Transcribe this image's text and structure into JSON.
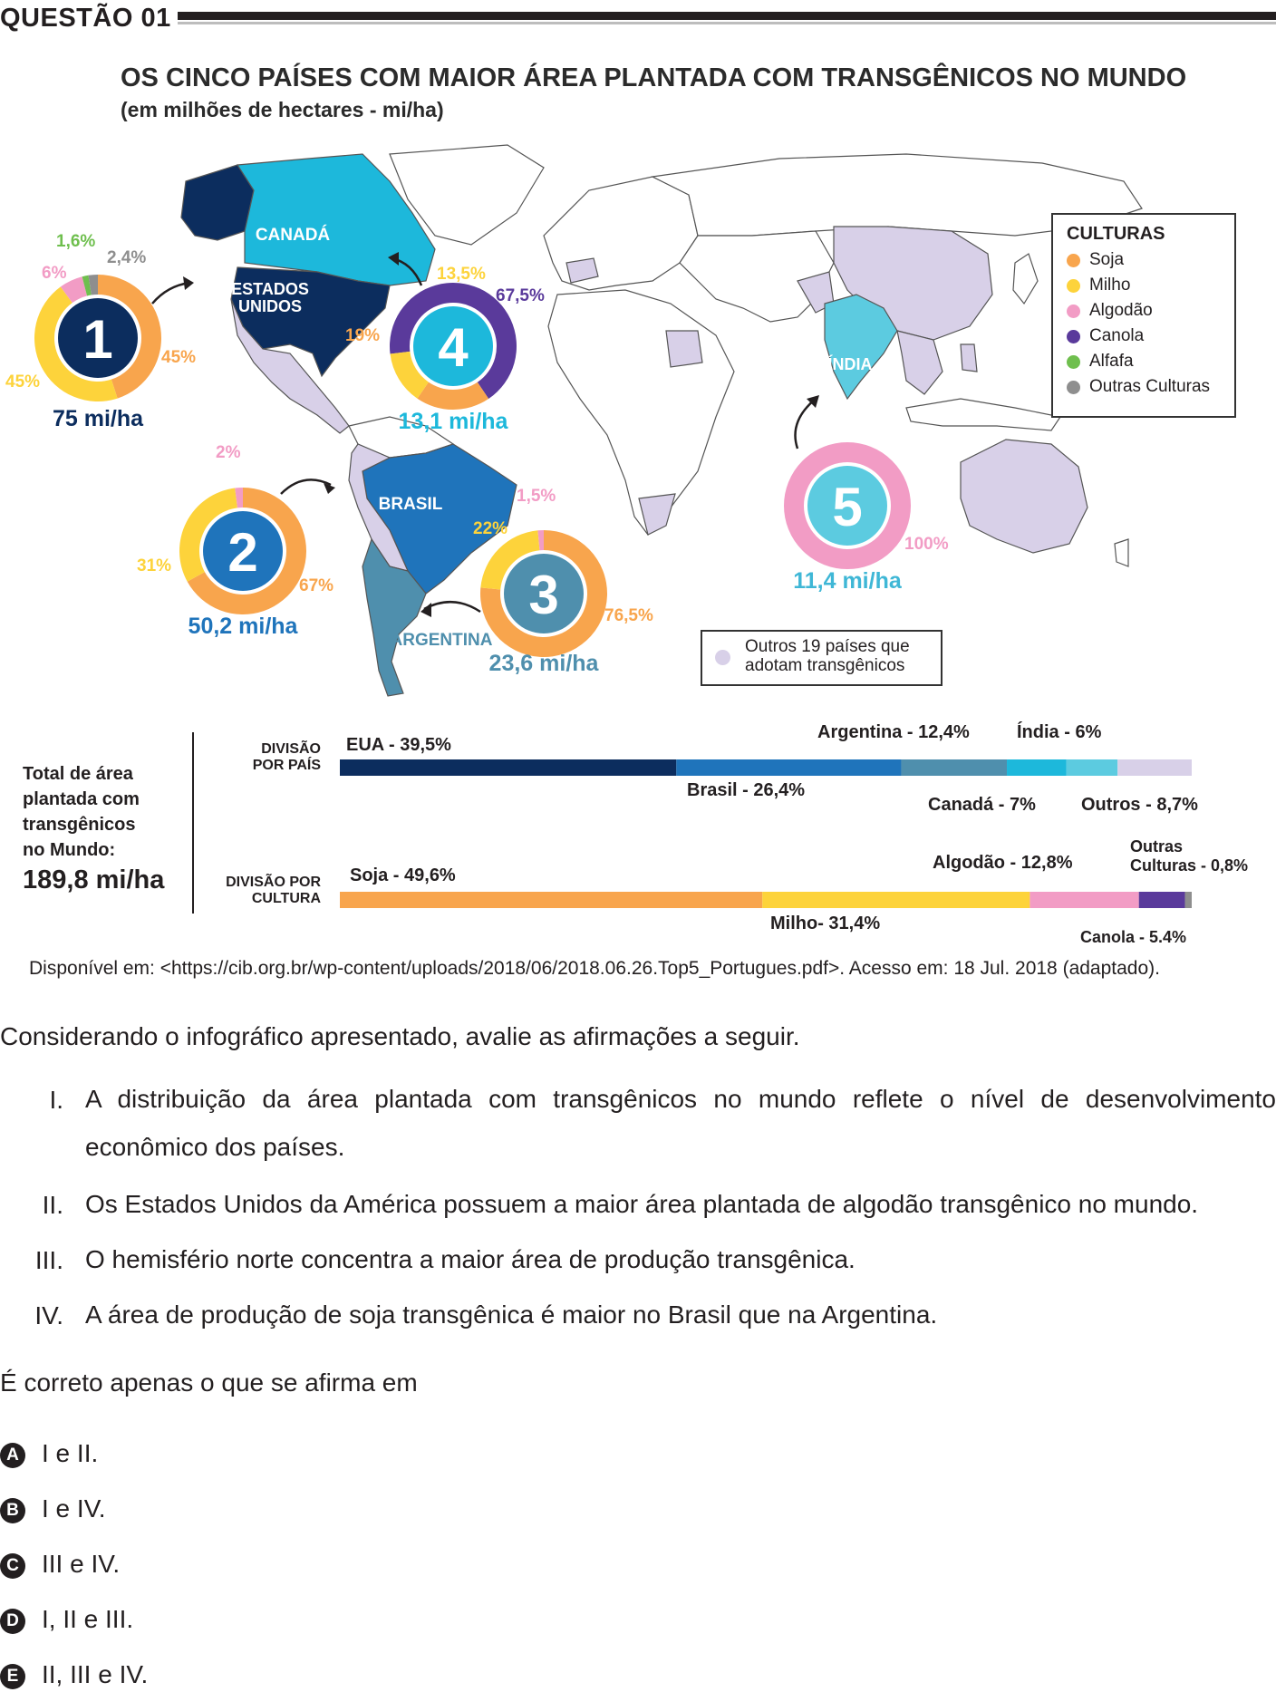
{
  "header": {
    "question": "QUESTÃO 01"
  },
  "infographic": {
    "title": "OS CINCO PAÍSES COM MAIOR ÁREA PLANTADA COM TRANSGÊNICOS NO MUNDO",
    "subtitle": "(em milhões de hectares - mi/ha)",
    "legend": {
      "title": "CULTURAS",
      "items": [
        {
          "label": "Soja",
          "color": "#f8a54d"
        },
        {
          "label": "Milho",
          "color": "#fdd33b"
        },
        {
          "label": "Algodão",
          "color": "#f29cc5"
        },
        {
          "label": "Canola",
          "color": "#5a3a9b"
        },
        {
          "label": "Alfafa",
          "color": "#6fbf4e"
        },
        {
          "label": "Outras Culturas",
          "color": "#8e8e8e"
        }
      ]
    },
    "others_box": {
      "line1": "Outros 19 países que",
      "line2": "adotam transgênicos",
      "color": "#d8d0e8"
    },
    "countries": {
      "canada": "CANADÁ",
      "usa_1": "ESTADOS",
      "usa_2": "UNIDOS",
      "brasil": "BRASIL",
      "argentina": "ARGENTINA",
      "india": "ÍNDIA"
    },
    "donuts": [
      {
        "rank": "1",
        "total": "75 mi/ha",
        "center_color": "#0c2d5e",
        "total_color": "#0c2d5e",
        "slices": [
          {
            "crop": "Soja",
            "value": 45
          },
          {
            "crop": "Milho",
            "value": 45
          },
          {
            "crop": "Algodão",
            "value": 6
          },
          {
            "crop": "Alfafa",
            "value": 1.6
          },
          {
            "crop": "Outras Culturas",
            "value": 2.4
          }
        ],
        "labels": {
          "soja": "45%",
          "milho": "45%",
          "algodao": "6%",
          "alfafa": "1,6%",
          "outras": "2,4%"
        }
      },
      {
        "rank": "2",
        "total": "50,2 mi/ha",
        "center_color": "#1f74bb",
        "total_color": "#1f74bb",
        "slices": [
          {
            "crop": "Soja",
            "value": 67
          },
          {
            "crop": "Milho",
            "value": 31
          },
          {
            "crop": "Algodão",
            "value": 2
          }
        ],
        "labels": {
          "soja": "67%",
          "milho": "31%",
          "algodao": "2%"
        }
      },
      {
        "rank": "3",
        "total": "23,6 mi/ha",
        "center_color": "#4f8fad",
        "total_color": "#4f8fad",
        "slices": [
          {
            "crop": "Soja",
            "value": 76.5
          },
          {
            "crop": "Milho",
            "value": 22
          },
          {
            "crop": "Algodão",
            "value": 1.5
          }
        ],
        "labels": {
          "soja": "76,5%",
          "milho": "22%",
          "algodao": "1,5%"
        }
      },
      {
        "rank": "4",
        "total": "13,1 mi/ha",
        "center_color": "#1db8db",
        "total_color": "#1db8db",
        "slices": [
          {
            "crop": "Canola",
            "value": 67.5
          },
          {
            "crop": "Soja",
            "value": 19
          },
          {
            "crop": "Milho",
            "value": 13.5
          }
        ],
        "labels": {
          "canola": "67,5%",
          "soja": "19%",
          "milho": "13,5%"
        }
      },
      {
        "rank": "5",
        "total": "11,4 mi/ha",
        "center_color": "#5ccbe0",
        "total_color": "#3fb7d6",
        "slices": [
          {
            "crop": "Algodão",
            "value": 100
          }
        ],
        "labels": {
          "algodao": "100%"
        }
      }
    ],
    "total": {
      "line1": "Total de área",
      "line2": "plantada com",
      "line3": "transgênicos",
      "line4": "no Mundo:",
      "value": "189,8 mi/ha"
    },
    "bar_country": {
      "label_1": "DIVISÃO",
      "label_2": "POR PAÍS",
      "segments": [
        {
          "name": "EUA - 39,5%",
          "value": 39.5,
          "color": "#0c2d5e"
        },
        {
          "name": "Brasil - 26,4%",
          "value": 26.4,
          "color": "#1f74bb"
        },
        {
          "name": "Argentina - 12,4%",
          "value": 12.4,
          "color": "#4f8fad"
        },
        {
          "name": "Canadá - 7%",
          "value": 7,
          "color": "#1db8db"
        },
        {
          "name": "Índia - 6%",
          "value": 6,
          "color": "#5ccbe0"
        },
        {
          "name": "Outros - 8,7%",
          "value": 8.7,
          "color": "#d8d0e8"
        }
      ]
    },
    "bar_crop": {
      "label_1": "DIVISÃO POR",
      "label_2": "CULTURA",
      "segments": [
        {
          "name": "Soja - 49,6%",
          "value": 49.6,
          "color": "#f8a54d"
        },
        {
          "name": "Milho- 31,4%",
          "value": 31.4,
          "color": "#fdd33b"
        },
        {
          "name": "Algodão - 12,8%",
          "value": 12.8,
          "color": "#f29cc5"
        },
        {
          "name": "Canola - 5,4%",
          "value": 5.4,
          "color": "#5a3a9b"
        },
        {
          "name": "Outras",
          "name2": "Culturas - 0,8%",
          "value": 0.8,
          "color": "#8e8e8e"
        }
      ]
    },
    "source": "Disponível em: <https://cib.org.br/wp-content/uploads/2018/06/2018.06.26.Top5_Portugues.pdf>. Acesso em: 18 Jul. 2018 (adaptado)."
  },
  "question": {
    "intro": "Considerando o infográfico apresentado, avalie as afirmações a seguir.",
    "statements": [
      {
        "num": "I.",
        "text": "A distribuição da área plantada com transgênicos no mundo reflete o nível de desenvolvimento econômico dos países."
      },
      {
        "num": "II.",
        "text": "Os Estados Unidos da América possuem a maior área plantada de algodão transgênico no mundo."
      },
      {
        "num": "III.",
        "text": "O hemisfério norte concentra a maior área de produção transgênica."
      },
      {
        "num": "IV.",
        "text": "A área de produção de soja transgênica é maior no Brasil que na Argentina."
      }
    ],
    "ask": "É correto apenas o que se afirma em",
    "options": [
      {
        "letter": "A",
        "text": "I e II."
      },
      {
        "letter": "B",
        "text": "I e IV."
      },
      {
        "letter": "C",
        "text": "III e IV."
      },
      {
        "letter": "D",
        "text": "I, II e III."
      },
      {
        "letter": "E",
        "text": "II, III e IV."
      }
    ]
  }
}
